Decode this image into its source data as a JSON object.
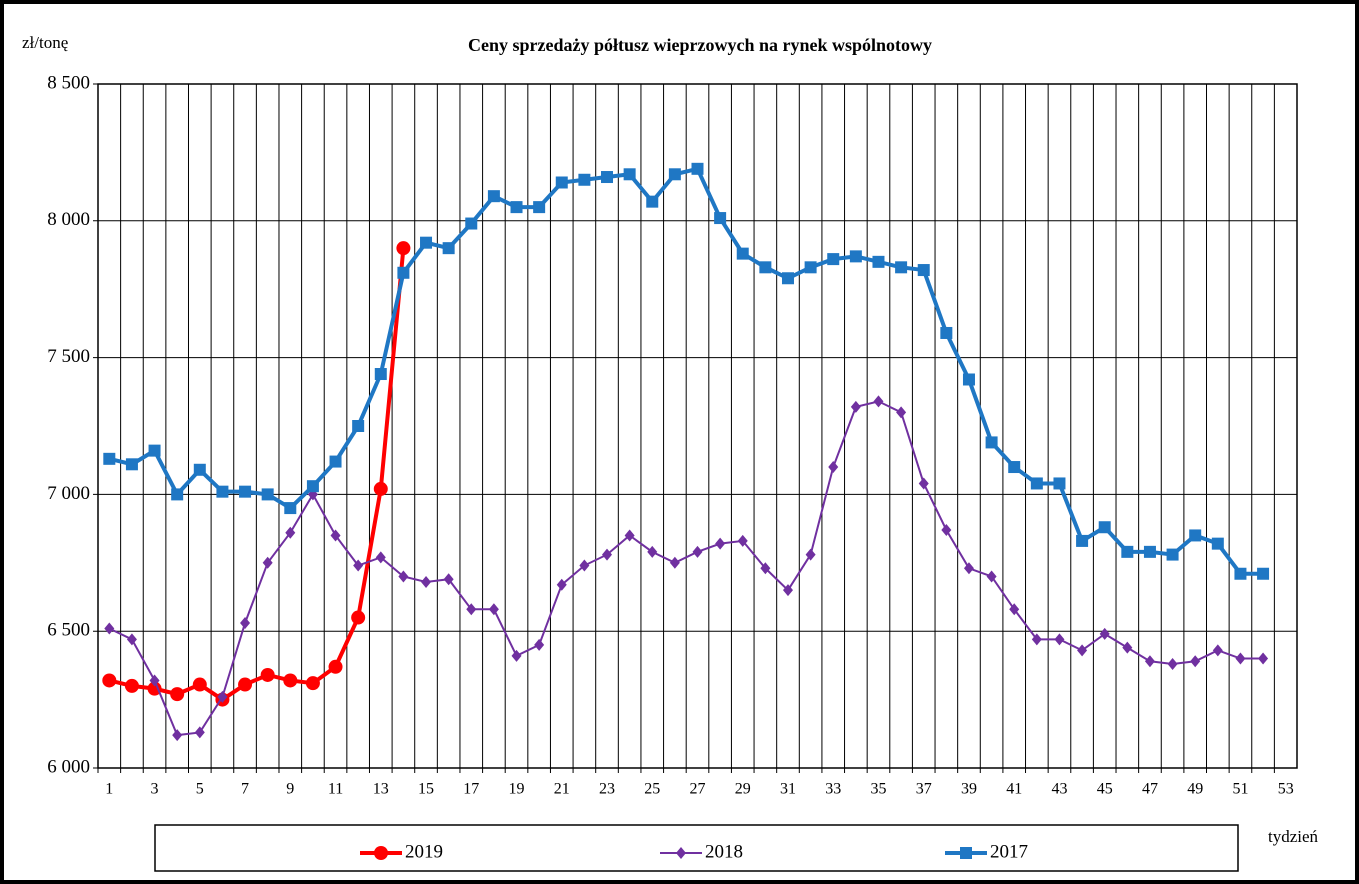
{
  "chart_data": {
    "type": "line",
    "title": "Ceny sprzedaży półtusz wieprzowych  na rynek wspólnotowy",
    "y_label": "zł/tonę",
    "x_label": "tydzień",
    "categories": [
      1,
      null,
      3,
      null,
      5,
      null,
      7,
      null,
      9,
      null,
      11,
      null,
      13,
      null,
      15,
      null,
      17,
      null,
      19,
      null,
      21,
      null,
      23,
      null,
      25,
      null,
      27,
      null,
      29,
      null,
      31,
      null,
      33,
      null,
      35,
      null,
      37,
      null,
      39,
      null,
      41,
      null,
      43,
      null,
      45,
      null,
      47,
      null,
      49,
      null,
      51,
      null,
      53
    ],
    "ylim": [
      6000,
      8500
    ],
    "yticks": [
      {
        "value": 6000,
        "label": "6 000"
      },
      {
        "value": 6500,
        "label": "6 500"
      },
      {
        "value": 7000,
        "label": "7 000"
      },
      {
        "value": 7500,
        "label": "7 500"
      },
      {
        "value": 8000,
        "label": "8 000"
      },
      {
        "value": 8500,
        "label": "8 500"
      }
    ],
    "grid": true,
    "series": [
      {
        "name": "2019",
        "color": "#ff0000",
        "marker": "circle",
        "values": [
          6320,
          6300,
          6290,
          6270,
          6305,
          6250,
          6305,
          6340,
          6320,
          6310,
          6370,
          6550,
          7020,
          7900,
          null,
          null,
          null,
          null,
          null,
          null,
          null,
          null,
          null,
          null,
          null,
          null,
          null,
          null,
          null,
          null,
          null,
          null,
          null,
          null,
          null,
          null,
          null,
          null,
          null,
          null,
          null,
          null,
          null,
          null,
          null,
          null,
          null,
          null,
          null,
          null,
          null,
          null,
          null
        ]
      },
      {
        "name": "2018",
        "color": "#7030a0",
        "marker": "diamond",
        "values": [
          6510,
          6470,
          6320,
          6120,
          6130,
          6260,
          6530,
          6750,
          6860,
          7000,
          6850,
          6740,
          6770,
          6700,
          6680,
          6690,
          6580,
          6580,
          6410,
          6450,
          6670,
          6740,
          6780,
          6850,
          6790,
          6750,
          6790,
          6820,
          6830,
          6730,
          6650,
          6780,
          7100,
          7320,
          7340,
          7300,
          7040,
          6870,
          6730,
          6700,
          6580,
          6470,
          6470,
          6430,
          6490,
          6440,
          6390,
          6380,
          6390,
          6430,
          6400,
          6400,
          null
        ]
      },
      {
        "name": "2017",
        "color": "#1f77c4",
        "marker": "square",
        "values": [
          7130,
          7110,
          7160,
          7000,
          7090,
          7010,
          7010,
          7000,
          6950,
          7030,
          7120,
          7250,
          7440,
          7810,
          7920,
          7900,
          7990,
          8090,
          8050,
          8050,
          8140,
          8150,
          8160,
          8170,
          8070,
          8170,
          8190,
          8010,
          7880,
          7830,
          7790,
          7830,
          7860,
          7870,
          7850,
          7830,
          7820,
          7590,
          7420,
          7190,
          7100,
          7040,
          7040,
          6830,
          6880,
          6790,
          6790,
          6780,
          6850,
          6820,
          6710,
          6710,
          null
        ]
      }
    ]
  }
}
